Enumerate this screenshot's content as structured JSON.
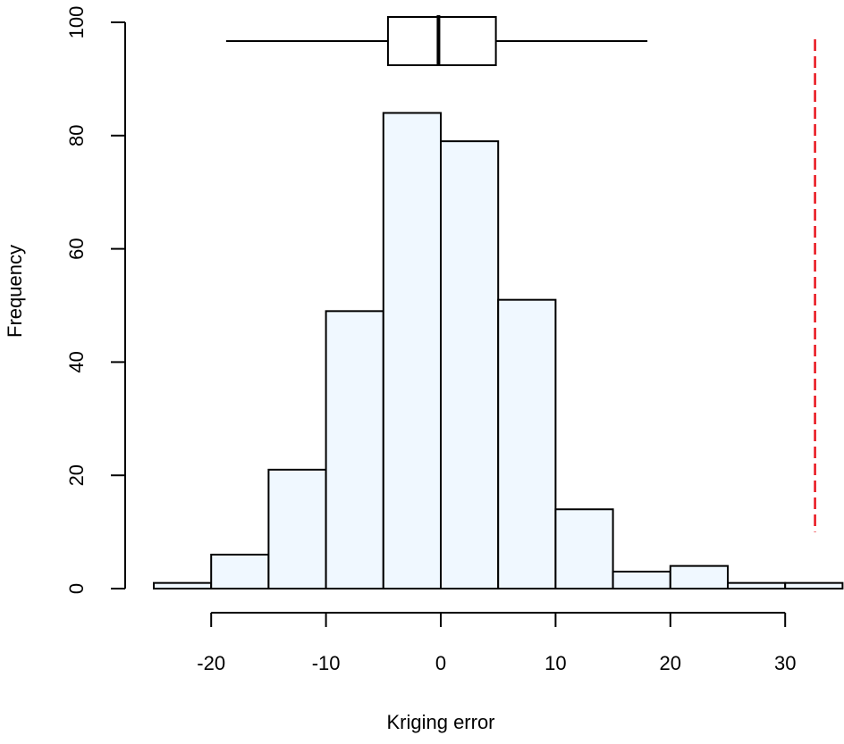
{
  "chart_data": {
    "type": "bar",
    "subtype": "histogram_with_boxplot",
    "title": "",
    "xlabel": "Kriging error",
    "ylabel": "Frequency",
    "bins": [
      {
        "from": -25,
        "to": -20,
        "count": 1
      },
      {
        "from": -20,
        "to": -15,
        "count": 6
      },
      {
        "from": -15,
        "to": -10,
        "count": 21
      },
      {
        "from": -10,
        "to": -5,
        "count": 49
      },
      {
        "from": -5,
        "to": 0,
        "count": 84
      },
      {
        "from": 0,
        "to": 5,
        "count": 79
      },
      {
        "from": 5,
        "to": 10,
        "count": 51
      },
      {
        "from": 10,
        "to": 15,
        "count": 14
      },
      {
        "from": 15,
        "to": 20,
        "count": 3
      },
      {
        "from": 20,
        "to": 25,
        "count": 4
      },
      {
        "from": 25,
        "to": 30,
        "count": 1
      },
      {
        "from": 30,
        "to": 35,
        "count": 1
      }
    ],
    "categories": [
      "-25–-20",
      "-20–-15",
      "-15–-10",
      "-10–-5",
      "-5–0",
      "0–5",
      "5–10",
      "10–15",
      "15–20",
      "20–25",
      "25–30",
      "30–35"
    ],
    "values": [
      1,
      6,
      21,
      49,
      84,
      79,
      51,
      14,
      3,
      4,
      1,
      1
    ],
    "x_ticks": [
      -20,
      -10,
      0,
      10,
      20,
      30
    ],
    "y_ticks": [
      0,
      20,
      40,
      60,
      80,
      100
    ],
    "xlim": [
      -25,
      35
    ],
    "ylim": [
      0,
      100
    ],
    "boxplot": {
      "whisker_low": -18.7,
      "q1": -4.6,
      "median": -0.2,
      "q3": 4.8,
      "whisker_high": 18.0,
      "y_position": 97
    },
    "reference_line": {
      "x": 32.6,
      "y_from": 10,
      "y_to": 97,
      "style": "dashed",
      "color": "#E8141C"
    },
    "bar_fill": "#F0F8FF",
    "bar_stroke": "#000000",
    "grid": false,
    "legend": null
  }
}
